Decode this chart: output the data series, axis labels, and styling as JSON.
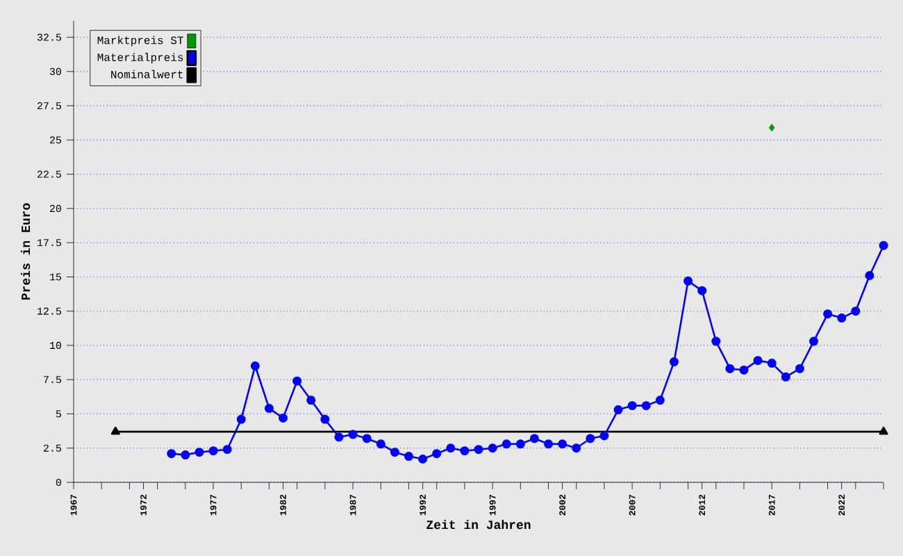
{
  "chart_data": {
    "type": "line",
    "xlabel": "Zeit in Jahren",
    "ylabel": "Preis in Euro",
    "xlim": [
      1967,
      2025
    ],
    "ylim": [
      0,
      33.7
    ],
    "xticks": [
      {
        "value": 1967,
        "label": "1967"
      },
      {
        "value": 1969,
        "label": null
      },
      {
        "value": 1971,
        "label": null
      },
      {
        "value": 1972,
        "label": "1972"
      },
      {
        "value": 1973,
        "label": null
      },
      {
        "value": 1975,
        "label": null
      },
      {
        "value": 1977,
        "label": "1977"
      },
      {
        "value": 1979,
        "label": null
      },
      {
        "value": 1981,
        "label": null
      },
      {
        "value": 1982,
        "label": "1982"
      },
      {
        "value": 1983,
        "label": null
      },
      {
        "value": 1985,
        "label": null
      },
      {
        "value": 1987,
        "label": "1987"
      },
      {
        "value": 1989,
        "label": null
      },
      {
        "value": 1991,
        "label": null
      },
      {
        "value": 1992,
        "label": "1992"
      },
      {
        "value": 1993,
        "label": null
      },
      {
        "value": 1995,
        "label": null
      },
      {
        "value": 1997,
        "label": "1997"
      },
      {
        "value": 1999,
        "label": null
      },
      {
        "value": 2001,
        "label": null
      },
      {
        "value": 2002,
        "label": "2002"
      },
      {
        "value": 2003,
        "label": null
      },
      {
        "value": 2005,
        "label": null
      },
      {
        "value": 2007,
        "label": "2007"
      },
      {
        "value": 2009,
        "label": null
      },
      {
        "value": 2011,
        "label": null
      },
      {
        "value": 2012,
        "label": "2012"
      },
      {
        "value": 2013,
        "label": null
      },
      {
        "value": 2015,
        "label": null
      },
      {
        "value": 2017,
        "label": "2017"
      },
      {
        "value": 2019,
        "label": null
      },
      {
        "value": 2021,
        "label": null
      },
      {
        "value": 2022,
        "label": "2022"
      },
      {
        "value": 2023,
        "label": null
      },
      {
        "value": 2025,
        "label": null
      }
    ],
    "yticks": [
      0,
      2.5,
      5,
      7.5,
      10,
      12.5,
      15,
      17.5,
      20,
      22.5,
      25,
      27.5,
      30,
      32.5
    ],
    "grid": "y",
    "legend": "top left",
    "series": [
      {
        "name": "Marktpreis ST",
        "type": "scatter",
        "marker": "diamond",
        "color": "#009900",
        "x": [
          2017
        ],
        "values": [
          25.9
        ]
      },
      {
        "name": "Materialpreis",
        "marker": "circle",
        "color": "#0000ff",
        "x": [
          1974,
          1975,
          1976,
          1977,
          1978,
          1979,
          1980,
          1981,
          1982,
          1983,
          1984,
          1985,
          1986,
          1987,
          1988,
          1989,
          1990,
          1991,
          1992,
          1993,
          1994,
          1995,
          1996,
          1997,
          1998,
          1999,
          2000,
          2001,
          2002,
          2003,
          2004,
          2005,
          2006,
          2007,
          2008,
          2009,
          2010,
          2011,
          2012,
          2013,
          2014,
          2015,
          2016,
          2017,
          2018,
          2019,
          2020,
          2021,
          2022,
          2023,
          2024,
          2025
        ],
        "values": [
          2.1,
          2.0,
          2.2,
          2.3,
          2.4,
          4.6,
          8.5,
          5.4,
          4.7,
          7.4,
          6.0,
          4.6,
          3.3,
          3.5,
          3.2,
          2.8,
          2.2,
          1.9,
          1.7,
          2.1,
          2.5,
          2.3,
          2.4,
          2.5,
          2.8,
          2.8,
          3.2,
          2.8,
          2.8,
          2.5,
          3.2,
          3.4,
          5.3,
          5.6,
          5.6,
          6.0,
          8.8,
          14.7,
          14.0,
          10.3,
          8.3,
          8.2,
          8.9,
          8.7,
          7.7,
          8.3,
          10.3,
          12.3,
          12.0,
          12.5,
          15.1,
          17.3
        ]
      },
      {
        "name": "Nominalwert",
        "marker": "triangle",
        "color": "#000000",
        "x": [
          1970,
          2025
        ],
        "values": [
          3.7,
          3.7
        ]
      }
    ]
  }
}
